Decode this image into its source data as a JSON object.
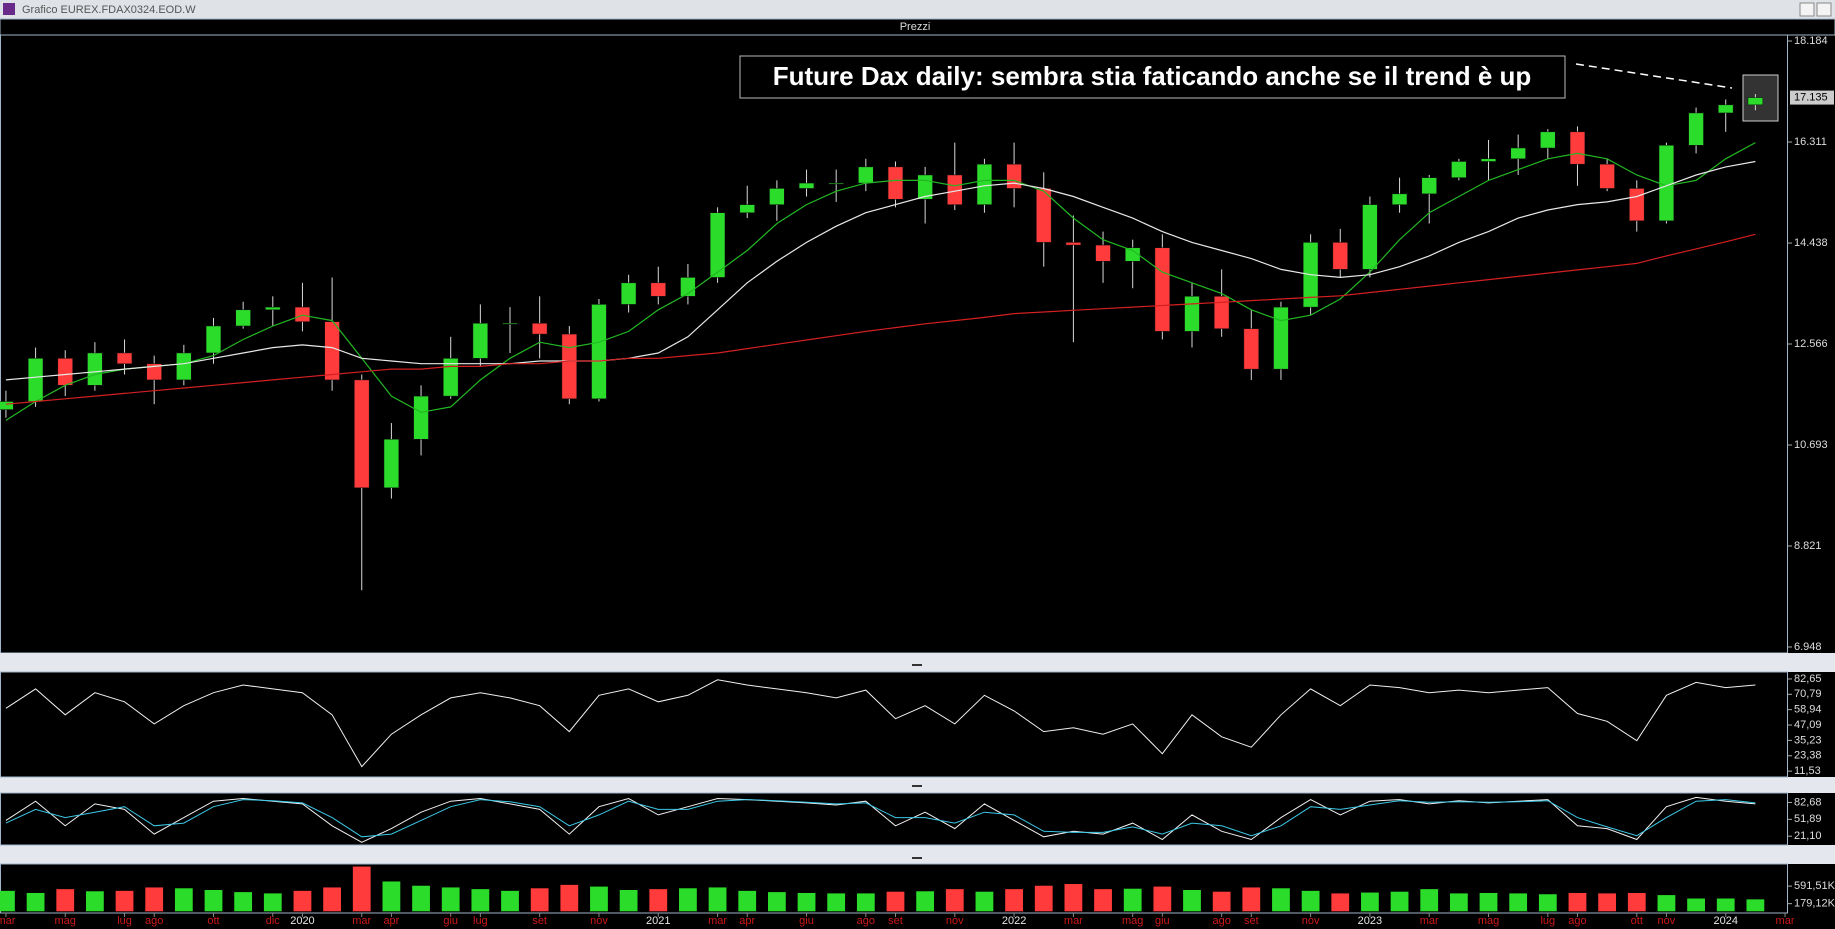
{
  "window": {
    "title": "Grafico EUREX.FDAX0324.EOD.W"
  },
  "chart_data": [
    {
      "type": "candlestick",
      "title": "Prezzi",
      "annotation": "Future Dax daily: sembra stia faticando anche se il trend è up",
      "up_color": "#2bdc2b",
      "down_color": "#ff3b3b",
      "wick_color": "#d8d8d8",
      "xlim": [
        -0.2,
        60.1
      ],
      "ylim": [
        6948,
        18184
      ],
      "yticks": [
        {
          "value": 18184,
          "label": "18.184"
        },
        {
          "value": 16311,
          "label": "16.311"
        },
        {
          "value": 14438,
          "label": "14.438"
        },
        {
          "value": 12566,
          "label": "12.566"
        },
        {
          "value": 10693,
          "label": "10.693"
        },
        {
          "value": 8821,
          "label": "8.821"
        },
        {
          "value": 6948,
          "label": "6.948"
        }
      ],
      "last_price": {
        "value": 17135,
        "label": "17.135"
      },
      "open": [
        11350,
        11500,
        12300,
        11800,
        12400,
        12200,
        11900,
        12400,
        12900,
        13200,
        13250,
        12980,
        11900,
        9900,
        10800,
        11600,
        12300,
        12950,
        12950,
        12750,
        11550,
        13300,
        13700,
        13450,
        13800,
        15000,
        15150,
        15450,
        15550,
        15550,
        15850,
        15250,
        15700,
        15150,
        15900,
        15450,
        14450,
        14400,
        14100,
        14350,
        12800,
        13450,
        12850,
        12100,
        13250,
        14450,
        13950,
        15150,
        15350,
        15650,
        15950,
        16000,
        16200,
        16500,
        15900,
        15450,
        14850,
        16250,
        16850,
        17000
      ],
      "high": [
        11700,
        12500,
        12450,
        12600,
        12650,
        12350,
        12550,
        13050,
        13350,
        13450,
        13700,
        13800,
        12000,
        11100,
        11800,
        12700,
        13300,
        13250,
        13450,
        12900,
        13400,
        13850,
        14000,
        14050,
        15100,
        15500,
        15600,
        15800,
        15800,
        16000,
        15950,
        15850,
        16300,
        16000,
        16300,
        15750,
        14950,
        14650,
        14500,
        14600,
        13700,
        13950,
        13200,
        13350,
        14600,
        14700,
        15300,
        15650,
        15700,
        16000,
        16350,
        16450,
        16550,
        16600,
        16000,
        15600,
        16300,
        16950,
        17100,
        17200
      ],
      "low": [
        11200,
        11400,
        11600,
        11700,
        12000,
        11450,
        11800,
        12200,
        12850,
        12900,
        12800,
        11700,
        8000,
        9700,
        10500,
        11550,
        12150,
        12400,
        12300,
        11450,
        11500,
        13150,
        13300,
        13300,
        13700,
        14900,
        14850,
        15300,
        15200,
        15400,
        15100,
        14800,
        15050,
        15000,
        15100,
        14000,
        12600,
        13700,
        13600,
        12650,
        12500,
        12700,
        11900,
        11900,
        13100,
        13800,
        13800,
        15000,
        14800,
        15600,
        15600,
        15700,
        16000,
        15500,
        15400,
        14650,
        14800,
        16100,
        16500,
        16900
      ],
      "close": [
        11500,
        12300,
        11800,
        12400,
        12200,
        11900,
        12400,
        12900,
        13200,
        13250,
        12980,
        11900,
        9900,
        10800,
        11600,
        12300,
        12950,
        12950,
        12750,
        11550,
        13300,
        13700,
        13450,
        13800,
        15000,
        15150,
        15450,
        15550,
        15550,
        15850,
        15250,
        15700,
        15150,
        15900,
        15450,
        14450,
        14400,
        14100,
        14350,
        12800,
        13450,
        12850,
        12100,
        13250,
        14450,
        13950,
        15150,
        15350,
        15650,
        15950,
        16000,
        16200,
        16500,
        15900,
        15450,
        14850,
        16250,
        16850,
        17000,
        17135
      ],
      "moving_averages": [
        {
          "color": "#23b823",
          "values": [
            11150,
            11500,
            11800,
            12000,
            12100,
            12150,
            12200,
            12350,
            12650,
            12900,
            13100,
            13000,
            12300,
            11600,
            11300,
            11400,
            11900,
            12300,
            12600,
            12500,
            12600,
            12800,
            13200,
            13500,
            13900,
            14300,
            14800,
            15150,
            15400,
            15550,
            15600,
            15600,
            15500,
            15600,
            15600,
            15400,
            14900,
            14500,
            14300,
            13900,
            13700,
            13500,
            13200,
            13000,
            13100,
            13400,
            13900,
            14500,
            15000,
            15300,
            15600,
            15800,
            16000,
            16100,
            16000,
            15700,
            15500,
            15600,
            16000,
            16300
          ]
        },
        {
          "color": "#e8e8e8",
          "values": [
            11900,
            11950,
            12000,
            12050,
            12100,
            12150,
            12200,
            12300,
            12400,
            12500,
            12550,
            12500,
            12300,
            12250,
            12200,
            12200,
            12200,
            12200,
            12250,
            12250,
            12250,
            12300,
            12400,
            12700,
            13200,
            13700,
            14100,
            14450,
            14750,
            15000,
            15150,
            15300,
            15400,
            15500,
            15550,
            15450,
            15300,
            15100,
            14900,
            14650,
            14450,
            14300,
            14150,
            13950,
            13850,
            13800,
            13850,
            14000,
            14200,
            14450,
            14650,
            14900,
            15050,
            15150,
            15200,
            15300,
            15500,
            15700,
            15850,
            15950
          ]
        },
        {
          "color": "#d42020",
          "values": [
            11450,
            11500,
            11550,
            11600,
            11650,
            11700,
            11750,
            11800,
            11850,
            11900,
            11950,
            12000,
            12050,
            12100,
            12100,
            12150,
            12150,
            12200,
            12200,
            12250,
            12250,
            12300,
            12300,
            12350,
            12400,
            12480,
            12560,
            12640,
            12720,
            12800,
            12870,
            12940,
            13000,
            13060,
            13130,
            13160,
            13190,
            13220,
            13250,
            13280,
            13310,
            13340,
            13370,
            13400,
            13430,
            13460,
            13520,
            13580,
            13640,
            13700,
            13760,
            13820,
            13880,
            13940,
            14000,
            14060,
            14200,
            14330,
            14460,
            14600
          ]
        }
      ]
    },
    {
      "type": "line",
      "ylim": [
        7,
        88
      ],
      "yticks": [
        {
          "value": 82.65,
          "label": "82,65"
        },
        {
          "value": 70.79,
          "label": "70,79"
        },
        {
          "value": 58.94,
          "label": "58,94"
        },
        {
          "value": 47.09,
          "label": "47,09"
        },
        {
          "value": 35.23,
          "label": "35,23"
        },
        {
          "value": 23.38,
          "label": "23,38"
        },
        {
          "value": 11.53,
          "label": "11,53"
        }
      ],
      "series": [
        {
          "color": "#f0f0f0",
          "values": [
            60,
            75,
            55,
            72,
            65,
            48,
            62,
            72,
            78,
            75,
            72,
            55,
            15,
            40,
            55,
            68,
            72,
            68,
            62,
            42,
            70,
            75,
            65,
            70,
            82,
            78,
            75,
            72,
            68,
            74,
            52,
            62,
            48,
            70,
            58,
            42,
            45,
            40,
            48,
            25,
            55,
            38,
            30,
            55,
            75,
            62,
            78,
            76,
            72,
            74,
            72,
            74,
            76,
            56,
            50,
            35,
            70,
            80,
            76,
            78
          ]
        }
      ]
    },
    {
      "type": "line",
      "ylim": [
        5,
        100
      ],
      "yticks": [
        {
          "value": 82.68,
          "label": "82,68"
        },
        {
          "value": 51.89,
          "label": "51,89"
        },
        {
          "value": 21.1,
          "label": "21,10"
        }
      ],
      "series": [
        {
          "color": "#f0f0f0",
          "values": [
            50,
            85,
            40,
            80,
            70,
            25,
            55,
            85,
            90,
            85,
            80,
            40,
            10,
            35,
            65,
            85,
            90,
            80,
            70,
            25,
            75,
            90,
            60,
            75,
            90,
            88,
            85,
            82,
            78,
            85,
            40,
            65,
            35,
            80,
            50,
            20,
            30,
            25,
            45,
            15,
            60,
            30,
            15,
            55,
            88,
            60,
            85,
            88,
            80,
            86,
            82,
            85,
            88,
            40,
            35,
            15,
            75,
            92,
            85,
            80
          ]
        },
        {
          "color": "#3cc8e6",
          "values": [
            45,
            70,
            55,
            65,
            75,
            40,
            45,
            75,
            88,
            86,
            82,
            55,
            20,
            25,
            50,
            75,
            88,
            84,
            75,
            40,
            60,
            85,
            70,
            70,
            85,
            88,
            86,
            83,
            80,
            82,
            55,
            55,
            45,
            65,
            60,
            30,
            28,
            28,
            38,
            25,
            45,
            40,
            22,
            40,
            75,
            70,
            78,
            86,
            83,
            84,
            83,
            84,
            86,
            55,
            38,
            22,
            55,
            85,
            88,
            82
          ]
        }
      ]
    },
    {
      "type": "bar",
      "ylim": [
        -40000,
        1110000
      ],
      "yticks": [
        {
          "value": 591510,
          "label": "591,51K"
        },
        {
          "value": 179120,
          "label": "179,12K"
        }
      ],
      "up_color": "#2bdc2b",
      "down_color": "#ff3b3b",
      "values": [
        480000,
        430000,
        520000,
        470000,
        480000,
        560000,
        540000,
        500000,
        450000,
        420000,
        480000,
        560000,
        1050000,
        700000,
        600000,
        560000,
        520000,
        480000,
        540000,
        620000,
        580000,
        500000,
        520000,
        540000,
        560000,
        480000,
        450000,
        430000,
        420000,
        420000,
        460000,
        470000,
        520000,
        460000,
        520000,
        600000,
        640000,
        520000,
        530000,
        580000,
        500000,
        460000,
        560000,
        540000,
        480000,
        420000,
        440000,
        460000,
        520000,
        420000,
        430000,
        420000,
        400000,
        430000,
        420000,
        430000,
        380000,
        300000,
        300000,
        280000
      ],
      "xticks": [
        {
          "value": 0,
          "label": "mar"
        },
        {
          "value": 2,
          "label": "mag"
        },
        {
          "value": 4,
          "label": "lug"
        },
        {
          "value": 5,
          "label": "ago"
        },
        {
          "value": 7,
          "label": "ott"
        },
        {
          "value": 9,
          "label": "dic"
        },
        {
          "value": 10,
          "label": "2020"
        },
        {
          "value": 12,
          "label": "mar"
        },
        {
          "value": 13,
          "label": "apr"
        },
        {
          "value": 15,
          "label": "giu"
        },
        {
          "value": 16,
          "label": "lug"
        },
        {
          "value": 18,
          "label": "set"
        },
        {
          "value": 20,
          "label": "nov"
        },
        {
          "value": 22,
          "label": "2021"
        },
        {
          "value": 24,
          "label": "mar"
        },
        {
          "value": 25,
          "label": "apr"
        },
        {
          "value": 27,
          "label": "giu"
        },
        {
          "value": 29,
          "label": "ago"
        },
        {
          "value": 30,
          "label": "set"
        },
        {
          "value": 32,
          "label": "nov"
        },
        {
          "value": 34,
          "label": "2022"
        },
        {
          "value": 36,
          "label": "mar"
        },
        {
          "value": 38,
          "label": "mag"
        },
        {
          "value": 39,
          "label": "giu"
        },
        {
          "value": 41,
          "label": "ago"
        },
        {
          "value": 42,
          "label": "set"
        },
        {
          "value": 44,
          "label": "nov"
        },
        {
          "value": 46,
          "label": "2023"
        },
        {
          "value": 48,
          "label": "mar"
        },
        {
          "value": 50,
          "label": "mag"
        },
        {
          "value": 52,
          "label": "lug"
        },
        {
          "value": 53,
          "label": "ago"
        },
        {
          "value": 55,
          "label": "ott"
        },
        {
          "value": 56,
          "label": "nov"
        },
        {
          "value": 58,
          "label": "2024"
        },
        {
          "value": 60,
          "label": "mar"
        }
      ]
    }
  ]
}
